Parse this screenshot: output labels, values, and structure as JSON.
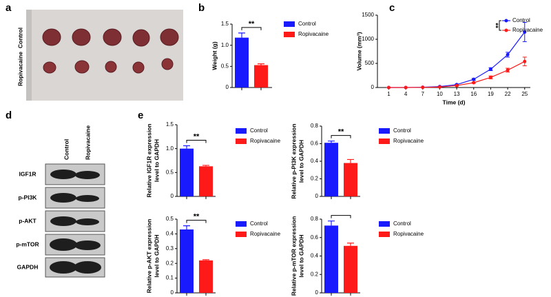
{
  "photo": {
    "panel": "a",
    "rows": [
      "Control",
      "Ropivacaine"
    ]
  },
  "blot": {
    "panel": "d",
    "columns": [
      "Control",
      "Ropivacaine"
    ],
    "rows": [
      "IGF1R",
      "p-PI3K",
      "p-AKT",
      "p-mTOR",
      "GAPDH"
    ]
  },
  "chart_data": [
    {
      "type": "bar",
      "panel": "b",
      "ylabel": "Weight (g)",
      "annotation": "**",
      "series": [
        {
          "name": "Control",
          "color": "#1a1aff",
          "values": [
            1.18
          ],
          "errors": [
            0.11
          ]
        },
        {
          "name": "Ropivacaine",
          "color": "#ff1a1a",
          "values": [
            0.53
          ],
          "errors": [
            0.03
          ]
        }
      ],
      "ylim": [
        0,
        1.5
      ],
      "yticks": [
        0,
        0.5,
        {
          "value": 1,
          "label": "1.0"
        },
        1.5
      ]
    },
    {
      "type": "line",
      "panel": "c",
      "xlabel": "Time (d)",
      "ylabel": "Volume (mm³)",
      "annotation": "**",
      "x": [
        1,
        4,
        7,
        10,
        13,
        16,
        19,
        22,
        25
      ],
      "series": [
        {
          "name": "Control",
          "color": "#1a1aff",
          "values": [
            0,
            0,
            5,
            20,
            60,
            170,
            380,
            680,
            1150
          ],
          "errors": [
            0,
            0,
            0,
            5,
            10,
            20,
            30,
            50,
            200
          ]
        },
        {
          "name": "Ropivacaine",
          "color": "#ff1a1a",
          "values": [
            0,
            0,
            3,
            10,
            40,
            100,
            210,
            360,
            540
          ],
          "errors": [
            0,
            0,
            0,
            3,
            8,
            15,
            30,
            40,
            90
          ]
        }
      ],
      "xlim": [
        -1,
        26
      ],
      "xticks": [
        1,
        4,
        7,
        10,
        13,
        16,
        19,
        22,
        25
      ],
      "ylim": [
        0,
        1500
      ],
      "yticks": [
        0,
        500,
        1000,
        1500
      ]
    },
    {
      "type": "bar",
      "panel": "e",
      "ylabel": [
        "Relative IGF1R expression",
        "level to GAPDH"
      ],
      "annotation": "**",
      "series": [
        {
          "name": "Control",
          "color": "#1a1aff",
          "values": [
            1.0
          ],
          "errors": [
            0.06
          ]
        },
        {
          "name": "Ropivacaine",
          "color": "#ff1a1a",
          "values": [
            0.63
          ],
          "errors": [
            0.02
          ]
        }
      ],
      "ylim": [
        0,
        1.5
      ],
      "yticks": [
        0,
        0.5,
        {
          "value": 1,
          "label": "1.0"
        },
        1.5
      ]
    },
    {
      "type": "bar",
      "ylabel": [
        "Relative p-PI3K expression",
        "level to GAPDH"
      ],
      "annotation": "**",
      "series": [
        {
          "name": "Control",
          "color": "#1a1aff",
          "values": [
            0.61
          ],
          "errors": [
            0.02
          ]
        },
        {
          "name": "Ropivacaine",
          "color": "#ff1a1a",
          "values": [
            0.38
          ],
          "errors": [
            0.04
          ]
        }
      ],
      "ylim": [
        0,
        0.8
      ],
      "yticks": [
        0,
        0.2,
        0.4,
        0.6,
        0.8
      ]
    },
    {
      "type": "bar",
      "ylabel": [
        "Relative p-AKT expression",
        "level to GAPDH"
      ],
      "annotation": "**",
      "series": [
        {
          "name": "Control",
          "color": "#1a1aff",
          "values": [
            0.43
          ],
          "errors": [
            0.025
          ]
        },
        {
          "name": "Ropivacaine",
          "color": "#ff1a1a",
          "values": [
            0.22
          ],
          "errors": [
            0.005
          ]
        }
      ],
      "ylim": [
        0,
        0.5
      ],
      "yticks": [
        0,
        0.1,
        0.2,
        0.3,
        0.4,
        0.5
      ]
    },
    {
      "type": "bar",
      "ylabel": [
        "Relative p-mTOR expression",
        "level to GAPDH"
      ],
      "series": [
        {
          "name": "Control",
          "color": "#1a1aff",
          "values": [
            0.73
          ],
          "errors": [
            0.05
          ]
        },
        {
          "name": "Ropivacaine",
          "color": "#ff1a1a",
          "values": [
            0.51
          ],
          "errors": [
            0.03
          ]
        }
      ],
      "ylim": [
        0,
        0.8
      ],
      "yticks": [
        0,
        0.2,
        0.4,
        0.6,
        0.8
      ]
    }
  ]
}
